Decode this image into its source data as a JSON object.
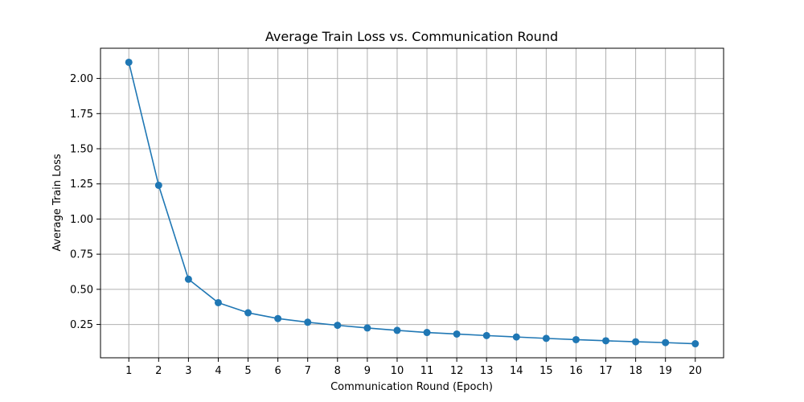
{
  "chart_data": {
    "type": "line",
    "title": "Average Train Loss vs. Communication Round",
    "xlabel": "Communication Round (Epoch)",
    "ylabel": "Average Train Loss",
    "x": [
      1,
      2,
      3,
      4,
      5,
      6,
      7,
      8,
      9,
      10,
      11,
      12,
      13,
      14,
      15,
      16,
      17,
      18,
      19,
      20
    ],
    "series": [
      {
        "values": [
          2.115,
          1.24,
          0.572,
          0.405,
          0.333,
          0.292,
          0.266,
          0.244,
          0.225,
          0.208,
          0.193,
          0.182,
          0.171,
          0.161,
          0.151,
          0.142,
          0.134,
          0.127,
          0.121,
          0.113
        ],
        "color": "#1f77b4",
        "marker": "circle"
      }
    ],
    "xticks": [
      "1",
      "2",
      "3",
      "4",
      "5",
      "6",
      "7",
      "8",
      "9",
      "10",
      "11",
      "12",
      "13",
      "14",
      "15",
      "16",
      "17",
      "18",
      "19",
      "20"
    ],
    "yticks": [
      "0.25",
      "0.50",
      "0.75",
      "1.00",
      "1.25",
      "1.50",
      "1.75",
      "2.00"
    ],
    "xlim": [
      0.05,
      20.95
    ],
    "ylim": [
      0.013,
      2.215
    ],
    "grid": true
  }
}
